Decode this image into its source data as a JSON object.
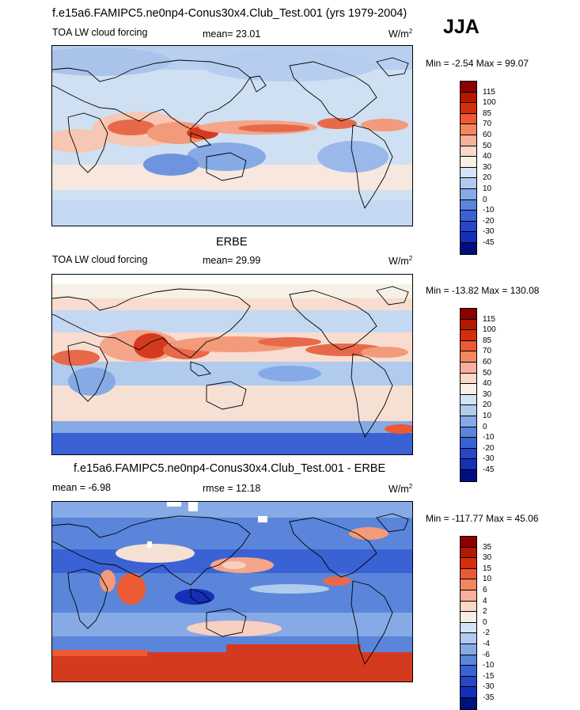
{
  "colors": {
    "ocean_mid": "#cfe0f3",
    "land_outline": "#000000",
    "colorbar_levels": [
      "#8c0000",
      "#b31800",
      "#d42e0a",
      "#ec5a34",
      "#f4865e",
      "#f8b09a",
      "#fbd8c8",
      "#f6f0e6",
      "#d4e4f6",
      "#b0cbee",
      "#86aae5",
      "#5a85da",
      "#3a62d4",
      "#2745c6",
      "#1430b8",
      "#000f7e"
    ]
  },
  "season": "JJA",
  "panels": [
    {
      "header": "f.e15a6.FAMIPC5.ne0np4-Conus30x4.Club_Test.001 (yrs 1979-2004)",
      "left_label": "TOA LW cloud forcing",
      "mean_label": "mean=  23.01",
      "units": "W/m",
      "units_sup": "2",
      "minmax": "Min =  -2.54 Max =  99.07",
      "colorbar_ticks": [
        "115",
        "100",
        "85",
        "70",
        "60",
        "50",
        "40",
        "30",
        "20",
        "10",
        "0",
        "-10",
        "-20",
        "-30",
        "-45"
      ],
      "map_kind": "model"
    },
    {
      "header": "ERBE",
      "left_label": "TOA LW cloud forcing",
      "mean_label": "mean=  29.99",
      "units": "W/m",
      "units_sup": "2",
      "minmax": "Min = -13.82 Max = 130.08",
      "colorbar_ticks": [
        "115",
        "100",
        "85",
        "70",
        "60",
        "50",
        "40",
        "30",
        "20",
        "10",
        "0",
        "-10",
        "-20",
        "-30",
        "-45"
      ],
      "map_kind": "obs"
    },
    {
      "header": "f.e15a6.FAMIPC5.ne0np4-Conus30x4.Club_Test.001 - ERBE",
      "left_label": "mean =  -6.98",
      "mean_label": "rmse =  12.18",
      "units": "W/m",
      "units_sup": "2",
      "minmax": "Min = -117.77 Max =  45.06",
      "colorbar_ticks": [
        "35",
        "30",
        "15",
        "10",
        "6",
        "4",
        "2",
        "0",
        "-2",
        "-4",
        "-6",
        "-10",
        "-15",
        "-30",
        "-35"
      ],
      "map_kind": "diff"
    }
  ]
}
